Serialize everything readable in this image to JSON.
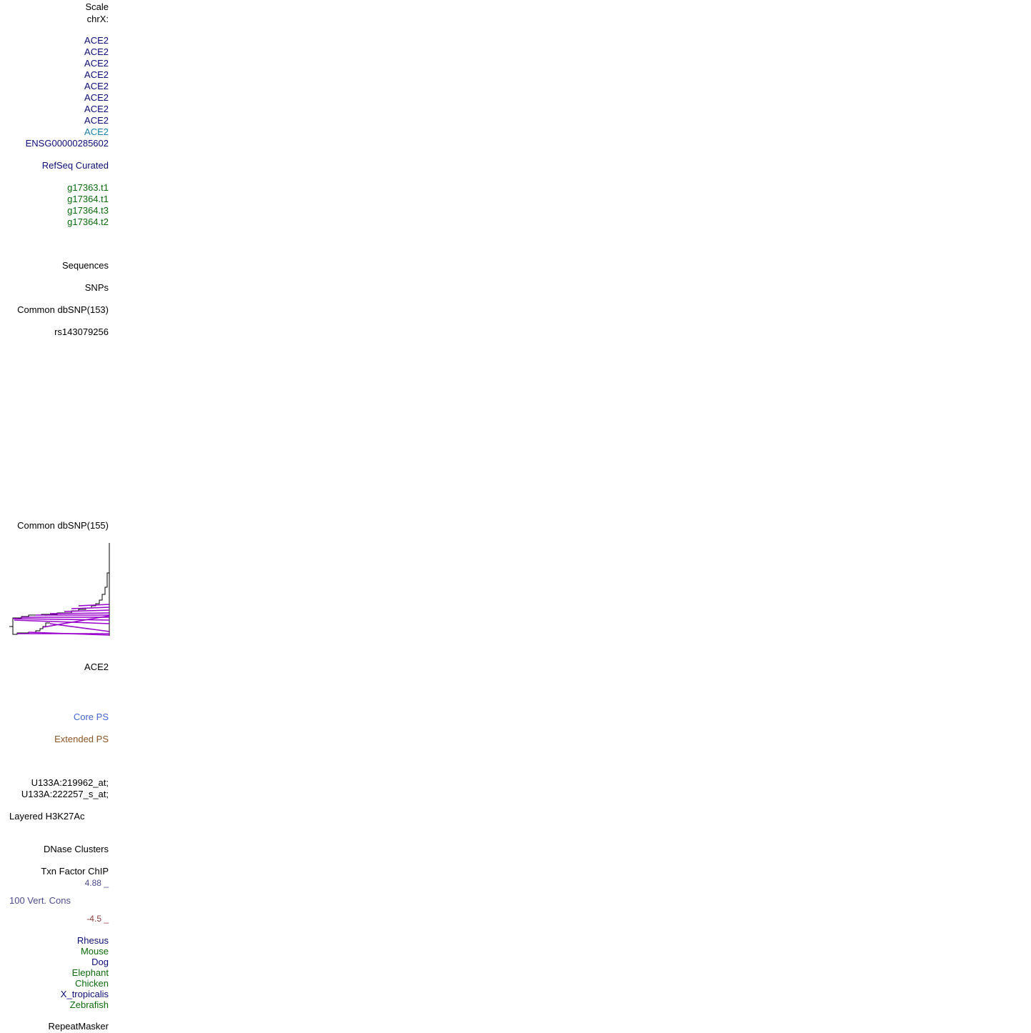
{
  "labels": {
    "scale": "Scale",
    "chrom": "chrX:",
    "ace2_tracks": [
      "ACE2",
      "ACE2",
      "ACE2",
      "ACE2",
      "ACE2",
      "ACE2",
      "ACE2",
      "ACE2",
      "ACE2"
    ],
    "ensg": "ENSG00000285602",
    "refseq": "RefSeq Curated",
    "augustus": [
      "g17363.t1",
      "g17364.t1",
      "g17364.t3",
      "g17364.t2"
    ],
    "sequences": "Sequences",
    "snps": "SNPs",
    "dbsnp153": "Common dbSNP(153)",
    "rs": "rs143079256",
    "dbsnp155": "Common dbSNP(155)",
    "gtex_gene": "ACE2",
    "core_ps": "Core PS",
    "extended_ps": "Extended PS",
    "probes": [
      "U133A:219962_at;",
      "U133A:222257_s_at;"
    ],
    "h3k27ac": "Layered H3K27Ac",
    "dnase": "DNase Clusters",
    "txn": "Txn Factor ChIP",
    "cons_max": "4.88 _",
    "cons_title": "100 Vert. Cons",
    "cons_min": "-4.5 _",
    "species": [
      "Rhesus",
      "Mouse",
      "Dog",
      "Elephant",
      "Chicken",
      "X_tropicalis",
      "Zebrafish"
    ],
    "repeatmasker": "RepeatMasker"
  }
}
